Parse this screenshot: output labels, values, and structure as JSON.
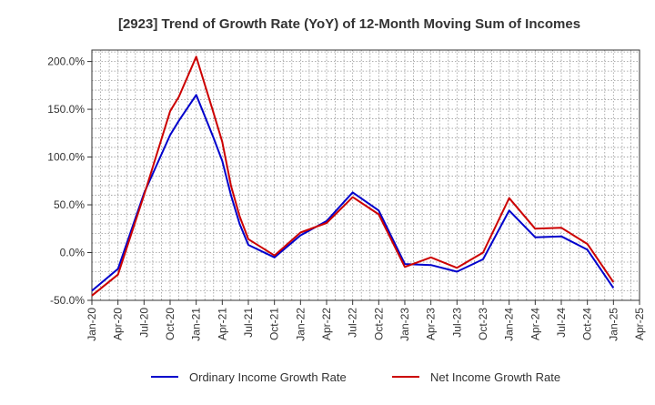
{
  "chart_data": {
    "type": "line",
    "title": "[2923]  Trend of Growth Rate (YoY) of 12-Month Moving Sum of Incomes",
    "xlabel": "",
    "ylabel": "",
    "x_tick_labels": [
      "Jan-20",
      "Apr-20",
      "Jul-20",
      "Oct-20",
      "Jan-21",
      "Apr-21",
      "Jul-21",
      "Oct-21",
      "Jan-22",
      "Apr-22",
      "Jul-22",
      "Oct-22",
      "Jan-23",
      "Apr-23",
      "Jul-23",
      "Oct-23",
      "Jan-24",
      "Apr-24",
      "Jul-24",
      "Oct-24",
      "Jan-25",
      "Apr-25"
    ],
    "y_ticks": [
      -50,
      0,
      50,
      100,
      150,
      200
    ],
    "y_tick_labels": [
      "-50.0%",
      "0.0%",
      "50.0%",
      "100.0%",
      "150.0%",
      "200.0%"
    ],
    "ylim": [
      -50,
      212
    ],
    "x_range_months": [
      0,
      63
    ],
    "grid": true,
    "legend_position": "bottom",
    "series": [
      {
        "name": "Ordinary Income Growth Rate",
        "color": "#0000cc",
        "points": [
          [
            0,
            -40
          ],
          [
            3,
            -17
          ],
          [
            6,
            62
          ],
          [
            9,
            123
          ],
          [
            10,
            138
          ],
          [
            12,
            165
          ],
          [
            14,
            120
          ],
          [
            15,
            96
          ],
          [
            16,
            60
          ],
          [
            17,
            30
          ],
          [
            18,
            8
          ],
          [
            21,
            -5
          ],
          [
            24,
            18
          ],
          [
            27,
            33
          ],
          [
            30,
            63
          ],
          [
            33,
            44
          ],
          [
            36,
            -12
          ],
          [
            39,
            -13
          ],
          [
            42,
            -20
          ],
          [
            45,
            -7
          ],
          [
            48,
            44
          ],
          [
            51,
            16
          ],
          [
            54,
            17
          ],
          [
            57,
            3
          ],
          [
            60,
            -37
          ]
        ]
      },
      {
        "name": "Net Income Growth Rate",
        "color": "#cc0000",
        "points": [
          [
            0,
            -45
          ],
          [
            3,
            -23
          ],
          [
            6,
            60
          ],
          [
            9,
            148
          ],
          [
            10,
            163
          ],
          [
            12,
            205
          ],
          [
            14,
            146
          ],
          [
            15,
            116
          ],
          [
            16,
            70
          ],
          [
            17,
            38
          ],
          [
            18,
            14
          ],
          [
            21,
            -3
          ],
          [
            24,
            21
          ],
          [
            27,
            31
          ],
          [
            30,
            58
          ],
          [
            33,
            40
          ],
          [
            36,
            -15
          ],
          [
            39,
            -5
          ],
          [
            42,
            -16
          ],
          [
            45,
            0
          ],
          [
            48,
            57
          ],
          [
            51,
            25
          ],
          [
            54,
            26
          ],
          [
            57,
            9
          ],
          [
            60,
            -31
          ]
        ]
      }
    ]
  }
}
